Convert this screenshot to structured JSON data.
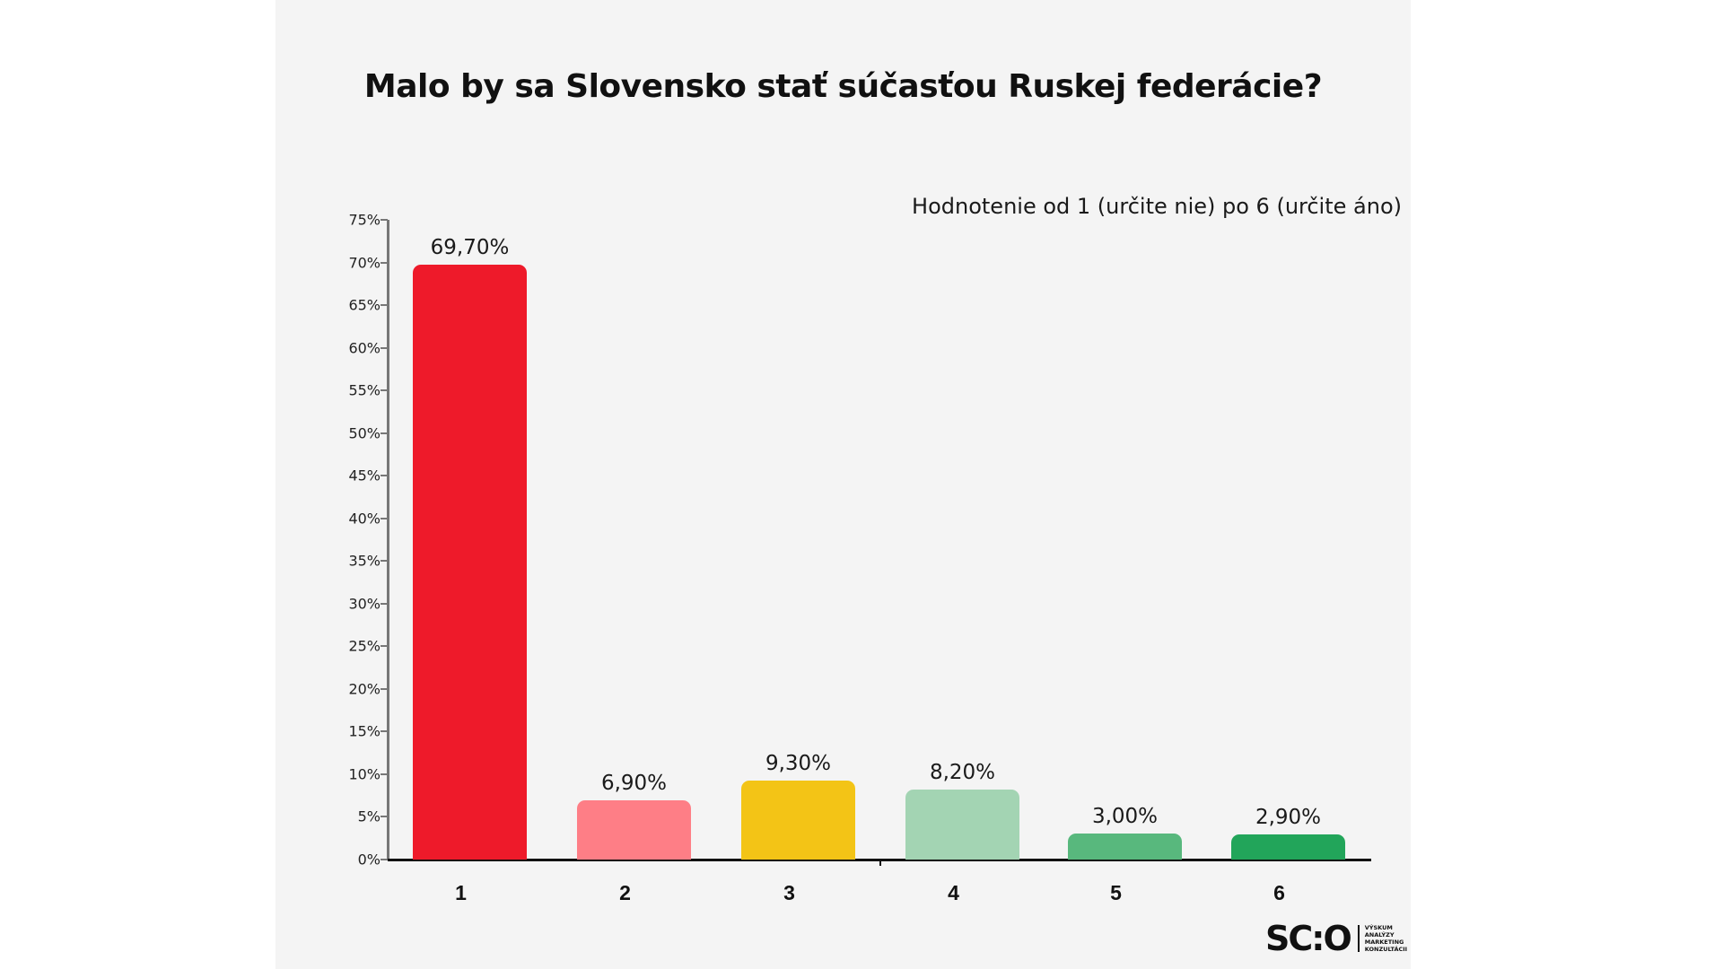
{
  "title": "Malo by sa Slovensko stať súčasťou Ruskej federácie?",
  "subtitle": "Hodnotenie  od 1 (určite nie) po 6 (určite áno)",
  "y_ticks": [
    "0%",
    "5%",
    "10%",
    "15%",
    "20%",
    "25%",
    "30%",
    "35%",
    "40%",
    "45%",
    "50%",
    "55%",
    "60%",
    "65%",
    "70%",
    "75%"
  ],
  "bars": [
    {
      "category": "1",
      "value": 69.7,
      "label": "69,70%",
      "color": "#ee1a2a"
    },
    {
      "category": "2",
      "value": 6.9,
      "label": "6,90%",
      "color": "#fe7e86"
    },
    {
      "category": "3",
      "value": 9.3,
      "label": "9,30%",
      "color": "#f3c416"
    },
    {
      "category": "4",
      "value": 8.2,
      "label": "8,20%",
      "color": "#a3d4b3"
    },
    {
      "category": "5",
      "value": 3.0,
      "label": "3,00%",
      "color": "#58b87d"
    },
    {
      "category": "6",
      "value": 2.9,
      "label": "2,90%",
      "color": "#22a55a"
    }
  ],
  "logo": {
    "mark": "SC:O",
    "lines": [
      "VÝSKUM",
      "ANALÝZY",
      "MARKETING",
      "KONZULTÁCII"
    ]
  },
  "chart_data": {
    "type": "bar",
    "title": "Malo by sa Slovensko stať súčasťou Ruskej federácie?",
    "subtitle": "Hodnotenie  od 1 (určite nie) po 6 (určite áno)",
    "categories": [
      "1",
      "2",
      "3",
      "4",
      "5",
      "6"
    ],
    "values": [
      69.7,
      6.9,
      9.3,
      8.2,
      3.0,
      2.9
    ],
    "data_labels": [
      "69,70%",
      "6,90%",
      "9,30%",
      "8,20%",
      "3,00%",
      "2,90%"
    ],
    "colors": [
      "#ee1a2a",
      "#fe7e86",
      "#f3c416",
      "#a3d4b3",
      "#58b87d",
      "#22a55a"
    ],
    "xlabel": "",
    "ylabel": "",
    "ylim": [
      0,
      75
    ],
    "y_tick_step": 5,
    "y_tick_format": "percent",
    "grid": false,
    "legend": null
  }
}
